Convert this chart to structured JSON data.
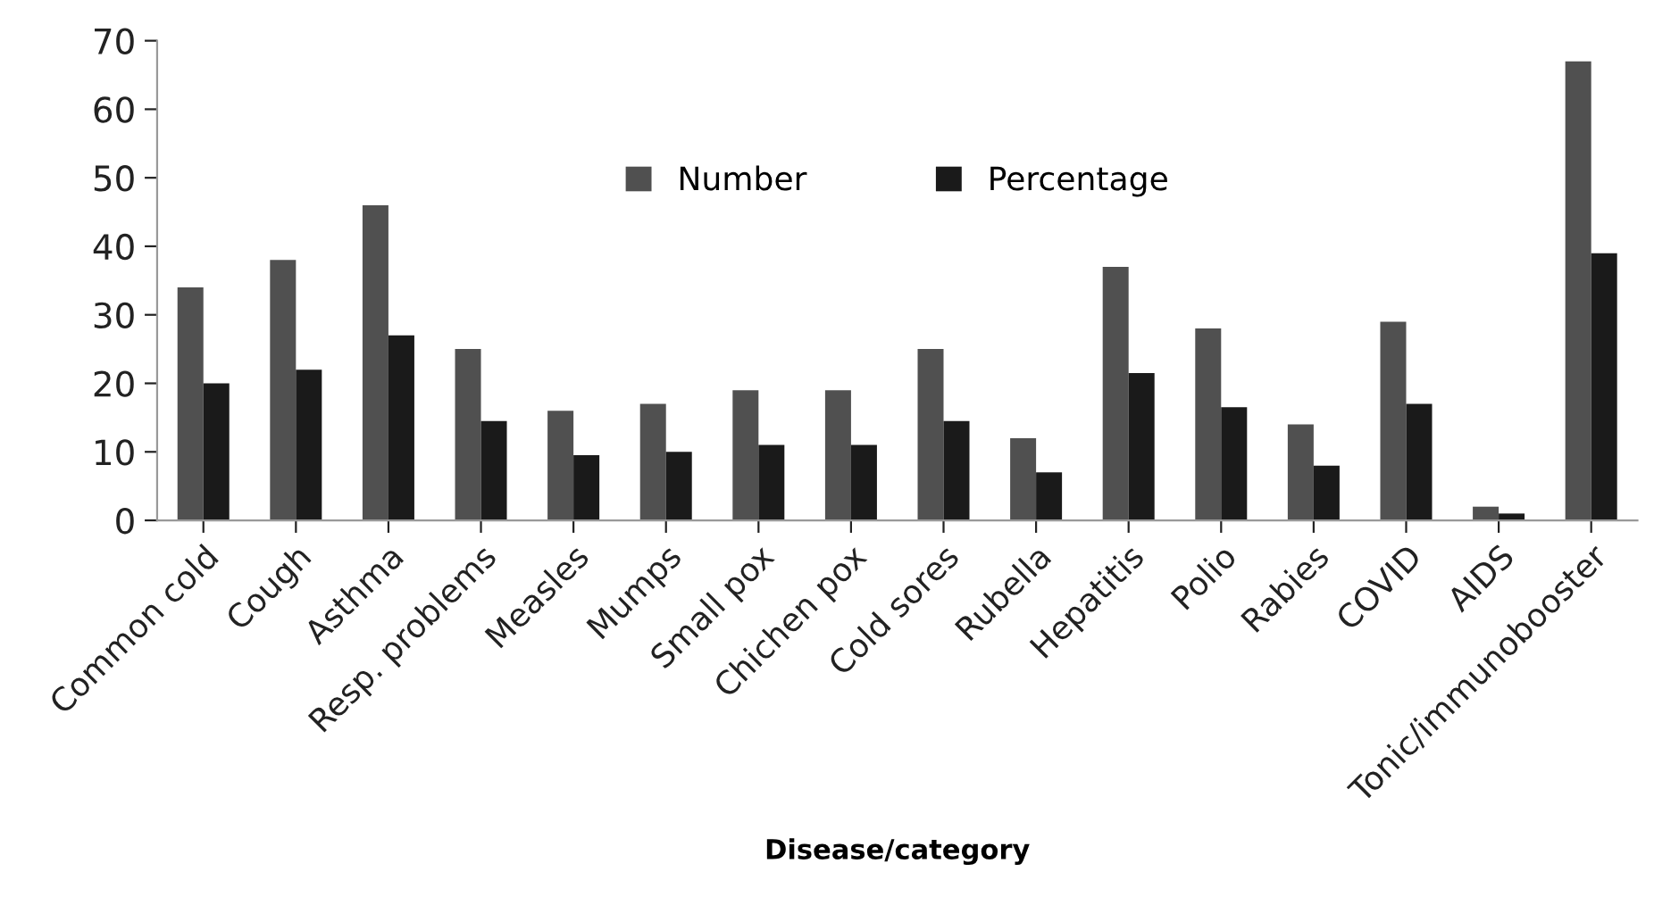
{
  "chart_data": {
    "type": "bar",
    "xlabel": "Disease/category",
    "categories": [
      "Common cold",
      "Cough",
      "Asthma",
      "Resp. problems",
      "Measles",
      "Mumps",
      "Small pox",
      "Chichen pox",
      "Cold sores",
      "Rubella",
      "Hepatitis",
      "Polio",
      "Rabies",
      "COVID",
      "AIDS",
      "Tonic/immunobooster"
    ],
    "series": [
      {
        "name": "Number",
        "color": "#505050",
        "values": [
          34,
          38,
          46,
          25,
          16,
          17,
          19,
          19,
          25,
          12,
          37,
          28,
          14,
          29,
          2,
          67
        ]
      },
      {
        "name": "Percentage",
        "color": "#1a1a1a",
        "values": [
          20,
          22,
          27,
          14.5,
          9.5,
          10,
          11,
          11,
          14.5,
          7,
          21.5,
          16.5,
          8,
          17,
          1,
          39
        ]
      }
    ],
    "ylim": [
      0,
      70
    ],
    "yticks": [
      0,
      10,
      20,
      30,
      40,
      50,
      60,
      70
    ],
    "grid": false,
    "legend": "top"
  }
}
